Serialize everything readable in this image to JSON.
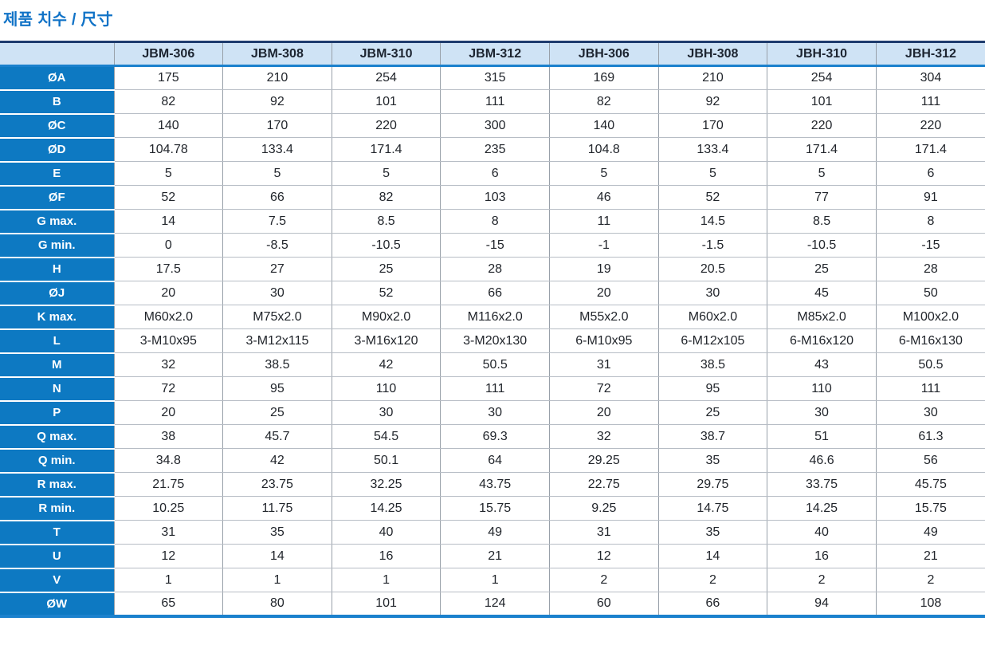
{
  "title": "제품 치수 /  尺寸",
  "colors": {
    "title_blue": "#1173c7",
    "row_label_blue": "#0d79c2",
    "header_background": "#cfe3f5",
    "accent_line_blue": "#1b81cd",
    "table_top_border": "#1e3c6e"
  },
  "table": {
    "corner_label": "",
    "columns": [
      "JBM-306",
      "JBM-308",
      "JBM-310",
      "JBM-312",
      "JBH-306",
      "JBH-308",
      "JBH-310",
      "JBH-312"
    ],
    "rows": [
      {
        "label": "ØA",
        "values": [
          "175",
          "210",
          "254",
          "315",
          "169",
          "210",
          "254",
          "304"
        ]
      },
      {
        "label": "B",
        "values": [
          "82",
          "92",
          "101",
          "111",
          "82",
          "92",
          "101",
          "111"
        ]
      },
      {
        "label": "ØC",
        "values": [
          "140",
          "170",
          "220",
          "300",
          "140",
          "170",
          "220",
          "220"
        ]
      },
      {
        "label": "ØD",
        "values": [
          "104.78",
          "133.4",
          "171.4",
          "235",
          "104.8",
          "133.4",
          "171.4",
          "171.4"
        ]
      },
      {
        "label": "E",
        "values": [
          "5",
          "5",
          "5",
          "6",
          "5",
          "5",
          "5",
          "6"
        ]
      },
      {
        "label": "ØF",
        "values": [
          "52",
          "66",
          "82",
          "103",
          "46",
          "52",
          "77",
          "91"
        ]
      },
      {
        "label": "G max.",
        "values": [
          "14",
          "7.5",
          "8.5",
          "8",
          "11",
          "14.5",
          "8.5",
          "8"
        ]
      },
      {
        "label": "G min.",
        "values": [
          "0",
          "-8.5",
          "-10.5",
          "-15",
          "-1",
          "-1.5",
          "-10.5",
          "-15"
        ]
      },
      {
        "label": "H",
        "values": [
          "17.5",
          "27",
          "25",
          "28",
          "19",
          "20.5",
          "25",
          "28"
        ]
      },
      {
        "label": "ØJ",
        "values": [
          "20",
          "30",
          "52",
          "66",
          "20",
          "30",
          "45",
          "50"
        ]
      },
      {
        "label": "K max.",
        "values": [
          "M60x2.0",
          "M75x2.0",
          "M90x2.0",
          "M116x2.0",
          "M55x2.0",
          "M60x2.0",
          "M85x2.0",
          "M100x2.0"
        ]
      },
      {
        "label": "L",
        "values": [
          "3-M10x95",
          "3-M12x115",
          "3-M16x120",
          "3-M20x130",
          "6-M10x95",
          "6-M12x105",
          "6-M16x120",
          "6-M16x130"
        ]
      },
      {
        "label": "M",
        "values": [
          "32",
          "38.5",
          "42",
          "50.5",
          "31",
          "38.5",
          "43",
          "50.5"
        ]
      },
      {
        "label": "N",
        "values": [
          "72",
          "95",
          "110",
          "111",
          "72",
          "95",
          "110",
          "111"
        ]
      },
      {
        "label": "P",
        "values": [
          "20",
          "25",
          "30",
          "30",
          "20",
          "25",
          "30",
          "30"
        ]
      },
      {
        "label": "Q max.",
        "values": [
          "38",
          "45.7",
          "54.5",
          "69.3",
          "32",
          "38.7",
          "51",
          "61.3"
        ]
      },
      {
        "label": "Q min.",
        "values": [
          "34.8",
          "42",
          "50.1",
          "64",
          "29.25",
          "35",
          "46.6",
          "56"
        ]
      },
      {
        "label": "R max.",
        "values": [
          "21.75",
          "23.75",
          "32.25",
          "43.75",
          "22.75",
          "29.75",
          "33.75",
          "45.75"
        ]
      },
      {
        "label": "R min.",
        "values": [
          "10.25",
          "11.75",
          "14.25",
          "15.75",
          "9.25",
          "14.75",
          "14.25",
          "15.75"
        ]
      },
      {
        "label": "T",
        "values": [
          "31",
          "35",
          "40",
          "49",
          "31",
          "35",
          "40",
          "49"
        ]
      },
      {
        "label": "U",
        "values": [
          "12",
          "14",
          "16",
          "21",
          "12",
          "14",
          "16",
          "21"
        ]
      },
      {
        "label": "V",
        "values": [
          "1",
          "1",
          "1",
          "1",
          "2",
          "2",
          "2",
          "2"
        ]
      },
      {
        "label": "ØW",
        "values": [
          "65",
          "80",
          "101",
          "124",
          "60",
          "66",
          "94",
          "108"
        ]
      }
    ]
  }
}
